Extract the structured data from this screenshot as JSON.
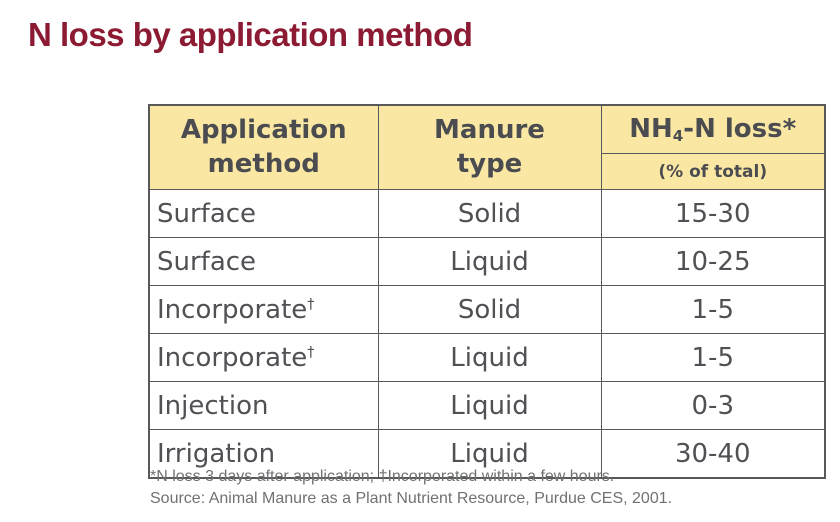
{
  "title": "N loss by application method",
  "colors": {
    "title_text": "#8B1A32",
    "header_background": "#FBE7A4",
    "grid_lines": "#58595B",
    "header_text": "#4A4C50",
    "body_text": "#4F5154",
    "footnote_text": "#6F7173"
  },
  "table": {
    "headers": {
      "application": {
        "line1": "Application",
        "line2": "method"
      },
      "manure": {
        "line1": "Manure",
        "line2": "type"
      },
      "loss": {
        "prefix": "NH",
        "subscript": "4",
        "suffix": "-N loss*",
        "sub_label": "(% of total)"
      }
    },
    "rows": [
      {
        "method": "Surface",
        "method_sup": "",
        "manure": "Solid",
        "loss": "15-30"
      },
      {
        "method": "Surface",
        "method_sup": "",
        "manure": "Liquid",
        "loss": "10-25"
      },
      {
        "method": "Incorporate",
        "method_sup": "†",
        "manure": "Solid",
        "loss": "1-5"
      },
      {
        "method": "Incorporate",
        "method_sup": "†",
        "manure": "Liquid",
        "loss": "1-5"
      },
      {
        "method": "Injection",
        "method_sup": "",
        "manure": "Liquid",
        "loss": "0-3"
      },
      {
        "method": "Irrigation",
        "method_sup": "",
        "manure": "Liquid",
        "loss": "30-40"
      }
    ]
  },
  "footnotes": [
    "*N loss 3 days after application; †Incorporated within a few hours.",
    "Source: Animal Manure as a Plant Nutrient Resource, Purdue CES, 2001."
  ]
}
